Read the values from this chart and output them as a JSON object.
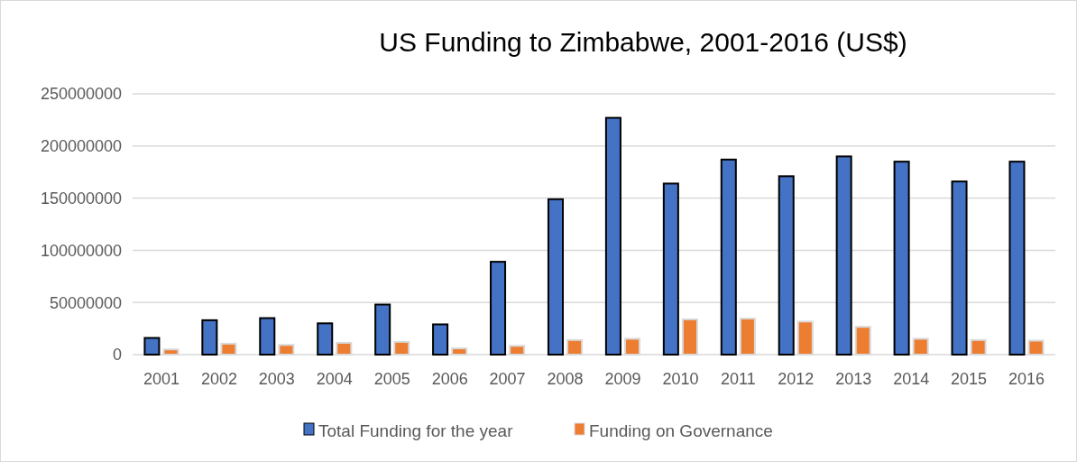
{
  "chart_data": {
    "type": "bar",
    "title": "US Funding to Zimbabwe, 2001-2016 (US$)",
    "categories": [
      "2001",
      "2002",
      "2003",
      "2004",
      "2005",
      "2006",
      "2007",
      "2008",
      "2009",
      "2010",
      "2011",
      "2012",
      "2013",
      "2014",
      "2015",
      "2016"
    ],
    "series": [
      {
        "name": "Total Funding for the year",
        "color": "#4472c4",
        "values": [
          16000000,
          33000000,
          35000000,
          30000000,
          48000000,
          29000000,
          89000000,
          149000000,
          227000000,
          164000000,
          187000000,
          171000000,
          190000000,
          185000000,
          166000000,
          185000000
        ]
      },
      {
        "name": "Funding on Governance",
        "color": "#ed7d31",
        "values": [
          5000000,
          10500000,
          9300000,
          11300000,
          12200000,
          6000000,
          8400000,
          14000000,
          15200000,
          33800000,
          34600000,
          31700000,
          26600000,
          15200000,
          14000000,
          13400000
        ]
      }
    ],
    "ylim": [
      0,
      250000000
    ],
    "yticks": [
      0,
      50000000,
      100000000,
      150000000,
      200000000,
      250000000
    ],
    "grid": "y",
    "legend": "bottom"
  }
}
